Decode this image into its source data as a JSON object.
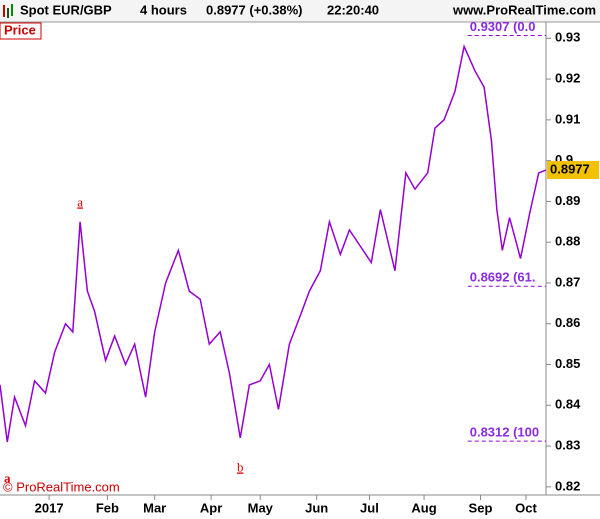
{
  "chart_data": {
    "type": "line",
    "title": "Spot EUR/GBP",
    "timeframe": "4 hours",
    "quote": "0.8977 (+0.38%)",
    "time": "22:20:40",
    "site": "www.ProRealTime.com",
    "panel_label": "Price",
    "copyright": "© ProRealTime.com",
    "last_price": 0.8977,
    "last_price_color": "#f2c200",
    "series": [
      {
        "name": "EUR/GBP",
        "color": "#9400d3",
        "x": [
          0,
          4,
          8,
          14,
          19,
          25,
          30,
          36,
          40,
          44,
          48,
          52,
          58,
          63,
          69,
          74,
          80,
          85,
          91,
          98,
          104,
          110,
          115,
          121,
          126,
          132,
          137,
          143,
          148,
          153,
          159,
          165,
          170,
          176,
          181,
          187,
          192,
          198,
          204,
          209,
          217,
          223,
          228,
          235,
          239,
          244,
          250,
          255,
          261,
          266,
          270,
          273,
          276,
          280,
          286,
          291,
          296,
          300
        ],
        "values": [
          0.845,
          0.831,
          0.842,
          0.835,
          0.846,
          0.843,
          0.853,
          0.86,
          0.858,
          0.885,
          0.868,
          0.863,
          0.851,
          0.857,
          0.85,
          0.855,
          0.842,
          0.858,
          0.87,
          0.878,
          0.868,
          0.866,
          0.855,
          0.858,
          0.848,
          0.832,
          0.845,
          0.846,
          0.85,
          0.839,
          0.855,
          0.862,
          0.868,
          0.873,
          0.885,
          0.877,
          0.883,
          0.879,
          0.875,
          0.888,
          0.873,
          0.897,
          0.893,
          0.897,
          0.908,
          0.91,
          0.917,
          0.928,
          0.922,
          0.918,
          0.905,
          0.888,
          0.878,
          0.886,
          0.876,
          0.887,
          0.897,
          0.8977
        ]
      }
    ],
    "xlim": [
      0,
      300
    ],
    "xticks": [
      {
        "value": 27,
        "label": "2017"
      },
      {
        "value": 59,
        "label": "Feb"
      },
      {
        "value": 85,
        "label": "Mar"
      },
      {
        "value": 116,
        "label": "Apr"
      },
      {
        "value": 143,
        "label": "May"
      },
      {
        "value": 174,
        "label": "Jun"
      },
      {
        "value": 203,
        "label": "Jul"
      },
      {
        "value": 233,
        "label": "Aug"
      },
      {
        "value": 264,
        "label": "Sep"
      },
      {
        "value": 289,
        "label": "Oct"
      }
    ],
    "ylim": [
      0.818,
      0.934
    ],
    "yticks": [
      0.82,
      0.83,
      0.84,
      0.85,
      0.86,
      0.87,
      0.88,
      0.89,
      0.9,
      0.91,
      0.92,
      0.93
    ],
    "levels": [
      {
        "value": 0.9307,
        "label": "0.9307 (0.0"
      },
      {
        "value": 0.8692,
        "label": "0.8692 (61."
      },
      {
        "value": 0.8312,
        "label": "0.8312 (100"
      }
    ],
    "level_start_x": 257,
    "annotations": [
      {
        "text": "a",
        "x": 44,
        "y": 0.8895
      },
      {
        "text": "b",
        "x": 132,
        "y": 0.8245
      },
      {
        "text": "a",
        "x": 4,
        "y": 0.8218
      }
    ]
  }
}
